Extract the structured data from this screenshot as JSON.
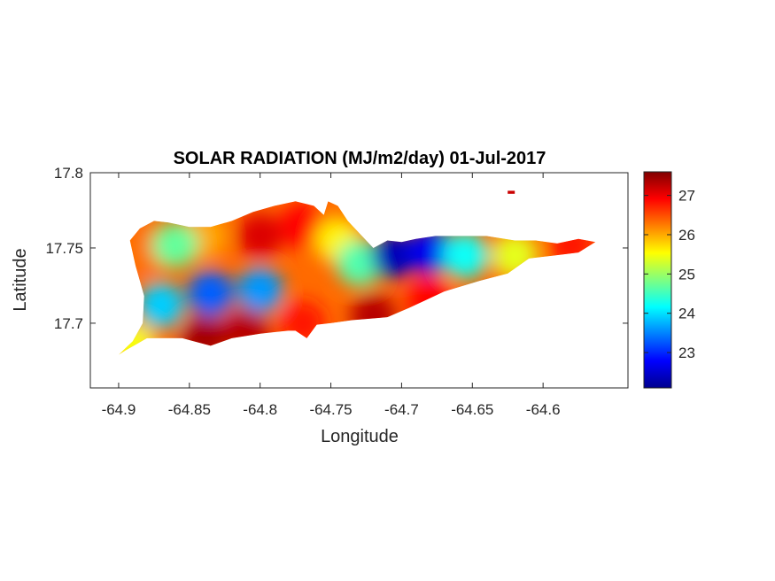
{
  "chart_data": {
    "type": "heatmap",
    "title": "SOLAR RADIATION (MJ/m2/day) 01-Jul-2017",
    "xlabel": "Longitude",
    "ylabel": "Latitude",
    "xlim": [
      -64.92,
      -64.54
    ],
    "ylim": [
      17.657,
      17.8
    ],
    "x_ticks": [
      -64.9,
      -64.85,
      -64.8,
      -64.75,
      -64.7,
      -64.65,
      -64.6
    ],
    "x_tick_labels": [
      "-64.9",
      "-64.85",
      "-64.8",
      "-64.75",
      "-64.7",
      "-64.65",
      "-64.6"
    ],
    "y_ticks": [
      17.7,
      17.75,
      17.8
    ],
    "y_tick_labels": [
      "17.7",
      "17.75",
      "17.8"
    ],
    "colorbar": {
      "colormap": "jet",
      "min": 22.1,
      "max": 27.6,
      "ticks": [
        23,
        24,
        25,
        26,
        27
      ],
      "tick_labels": [
        "23",
        "24",
        "25",
        "26",
        "27"
      ]
    },
    "grid": false,
    "outline": [
      [
        -64.9,
        17.679
      ],
      [
        -64.89,
        17.688
      ],
      [
        -64.883,
        17.7
      ],
      [
        -64.882,
        17.718
      ],
      [
        -64.888,
        17.738
      ],
      [
        -64.892,
        17.755
      ],
      [
        -64.885,
        17.763
      ],
      [
        -64.875,
        17.768
      ],
      [
        -64.865,
        17.767
      ],
      [
        -64.85,
        17.764
      ],
      [
        -64.835,
        17.764
      ],
      [
        -64.82,
        17.768
      ],
      [
        -64.805,
        17.774
      ],
      [
        -64.79,
        17.778
      ],
      [
        -64.775,
        17.781
      ],
      [
        -64.762,
        17.778
      ],
      [
        -64.755,
        17.772
      ],
      [
        -64.752,
        17.781
      ],
      [
        -64.745,
        17.778
      ],
      [
        -64.738,
        17.768
      ],
      [
        -64.73,
        17.76
      ],
      [
        -64.72,
        17.75
      ],
      [
        -64.71,
        17.755
      ],
      [
        -64.7,
        17.754
      ],
      [
        -64.69,
        17.756
      ],
      [
        -64.676,
        17.758
      ],
      [
        -64.665,
        17.758
      ],
      [
        -64.64,
        17.758
      ],
      [
        -64.62,
        17.755
      ],
      [
        -64.605,
        17.755
      ],
      [
        -64.59,
        17.753
      ],
      [
        -64.575,
        17.756
      ],
      [
        -64.563,
        17.754
      ],
      [
        -64.575,
        17.747
      ],
      [
        -64.592,
        17.745
      ],
      [
        -64.61,
        17.743
      ],
      [
        -64.625,
        17.733
      ],
      [
        -64.645,
        17.728
      ],
      [
        -64.67,
        17.721
      ],
      [
        -64.695,
        17.71
      ],
      [
        -64.71,
        17.704
      ],
      [
        -64.735,
        17.702
      ],
      [
        -64.75,
        17.7
      ],
      [
        -64.76,
        17.699
      ],
      [
        -64.767,
        17.69
      ],
      [
        -64.775,
        17.695
      ],
      [
        -64.78,
        17.695
      ],
      [
        -64.8,
        17.693
      ],
      [
        -64.82,
        17.69
      ],
      [
        -64.835,
        17.685
      ],
      [
        -64.855,
        17.69
      ],
      [
        -64.88,
        17.69
      ],
      [
        -64.895,
        17.682
      ]
    ],
    "outline_islet": [
      [
        -64.625,
        17.788
      ],
      [
        -64.62,
        17.788
      ],
      [
        -64.62,
        17.786
      ],
      [
        -64.625,
        17.786
      ]
    ],
    "islet_value": 27.2,
    "field_values": [
      {
        "lon": -64.8,
        "lat": 17.758,
        "value": 27.1
      },
      {
        "lon": -64.77,
        "lat": 17.765,
        "value": 26.9
      },
      {
        "lon": -64.84,
        "lat": 17.758,
        "value": 26.0
      },
      {
        "lon": -64.88,
        "lat": 17.748,
        "value": 26.3
      },
      {
        "lon": -64.86,
        "lat": 17.752,
        "value": 24.7
      },
      {
        "lon": -64.835,
        "lat": 17.72,
        "value": 23.3
      },
      {
        "lon": -64.8,
        "lat": 17.722,
        "value": 23.6
      },
      {
        "lon": -64.87,
        "lat": 17.712,
        "value": 23.9
      },
      {
        "lon": -64.745,
        "lat": 17.755,
        "value": 25.6
      },
      {
        "lon": -64.73,
        "lat": 17.74,
        "value": 24.6
      },
      {
        "lon": -64.705,
        "lat": 17.745,
        "value": 22.4
      },
      {
        "lon": -64.68,
        "lat": 17.748,
        "value": 22.7
      },
      {
        "lon": -64.655,
        "lat": 17.745,
        "value": 24.2
      },
      {
        "lon": -64.62,
        "lat": 17.745,
        "value": 25.4
      },
      {
        "lon": -64.58,
        "lat": 17.752,
        "value": 26.8
      },
      {
        "lon": -64.72,
        "lat": 17.705,
        "value": 27.3
      },
      {
        "lon": -64.68,
        "lat": 17.715,
        "value": 26.9
      },
      {
        "lon": -64.81,
        "lat": 17.695,
        "value": 27.3
      },
      {
        "lon": -64.77,
        "lat": 17.7,
        "value": 26.8
      },
      {
        "lon": -64.84,
        "lat": 17.69,
        "value": 27.4
      },
      {
        "lon": -64.89,
        "lat": 17.685,
        "value": 25.5
      }
    ]
  }
}
